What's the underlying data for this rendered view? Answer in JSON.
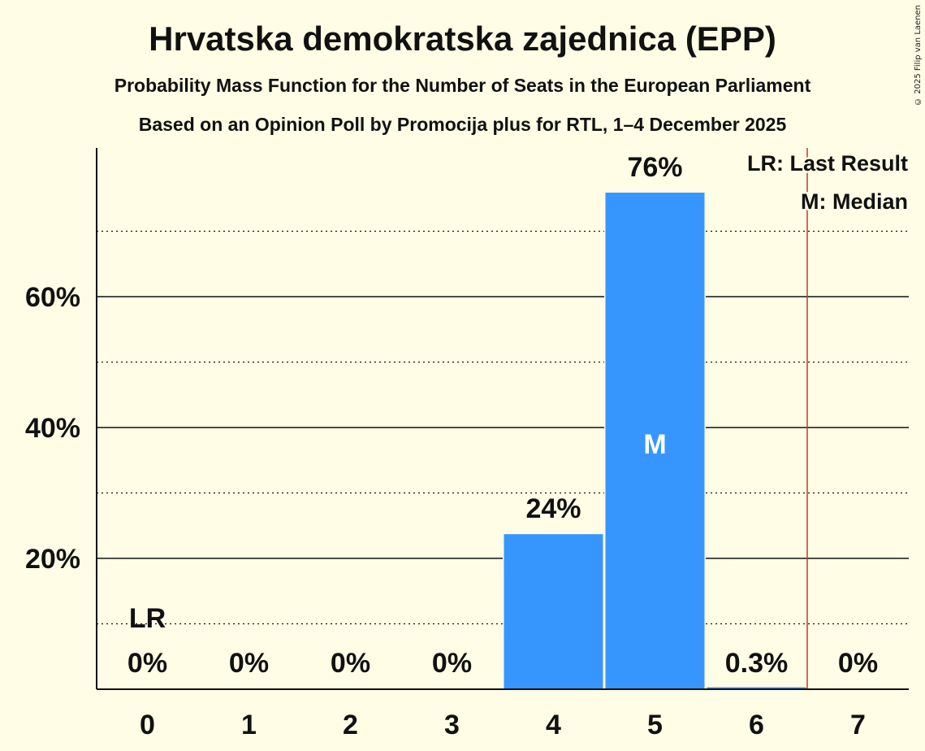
{
  "header": {
    "title": "Hrvatska demokratska zajednica (EPP)",
    "subtitle": "Probability Mass Function for the Number of Seats in the European Parliament",
    "source": "Based on an Opinion Poll by Promocija plus for RTL, 1–4 December 2025",
    "copyright": "© 2025 Filip van Laenen"
  },
  "colors": {
    "bar": "#3796fe",
    "last_result_line": "#c0392b",
    "background": "#fffde6"
  },
  "chart_data": {
    "type": "bar",
    "title": "Hrvatska demokratska zajednica (EPP)",
    "xlabel": "",
    "ylabel": "",
    "categories": [
      "0",
      "1",
      "2",
      "3",
      "4",
      "5",
      "6",
      "7"
    ],
    "values": [
      0,
      0,
      0,
      0,
      23.7,
      75.9,
      0.3,
      0
    ],
    "labels": [
      "0%",
      "0%",
      "0%",
      "0%",
      "24%",
      "76%",
      "0.3%",
      "0%"
    ],
    "ylim": [
      0,
      83
    ],
    "y_ticks": [
      {
        "value": 20,
        "label": "20%"
      },
      {
        "value": 40,
        "label": "40%"
      },
      {
        "value": 60,
        "label": "60%"
      }
    ],
    "minor_gridlines": [
      10,
      30,
      50,
      70
    ],
    "median_seat": 5,
    "median_label": "M",
    "last_result_seat": 0,
    "last_result_label": "LR",
    "last_result_line_x": 6.5,
    "legend": {
      "placement": "top-right",
      "entries": [
        "LR: Last Result",
        "M: Median"
      ]
    }
  }
}
